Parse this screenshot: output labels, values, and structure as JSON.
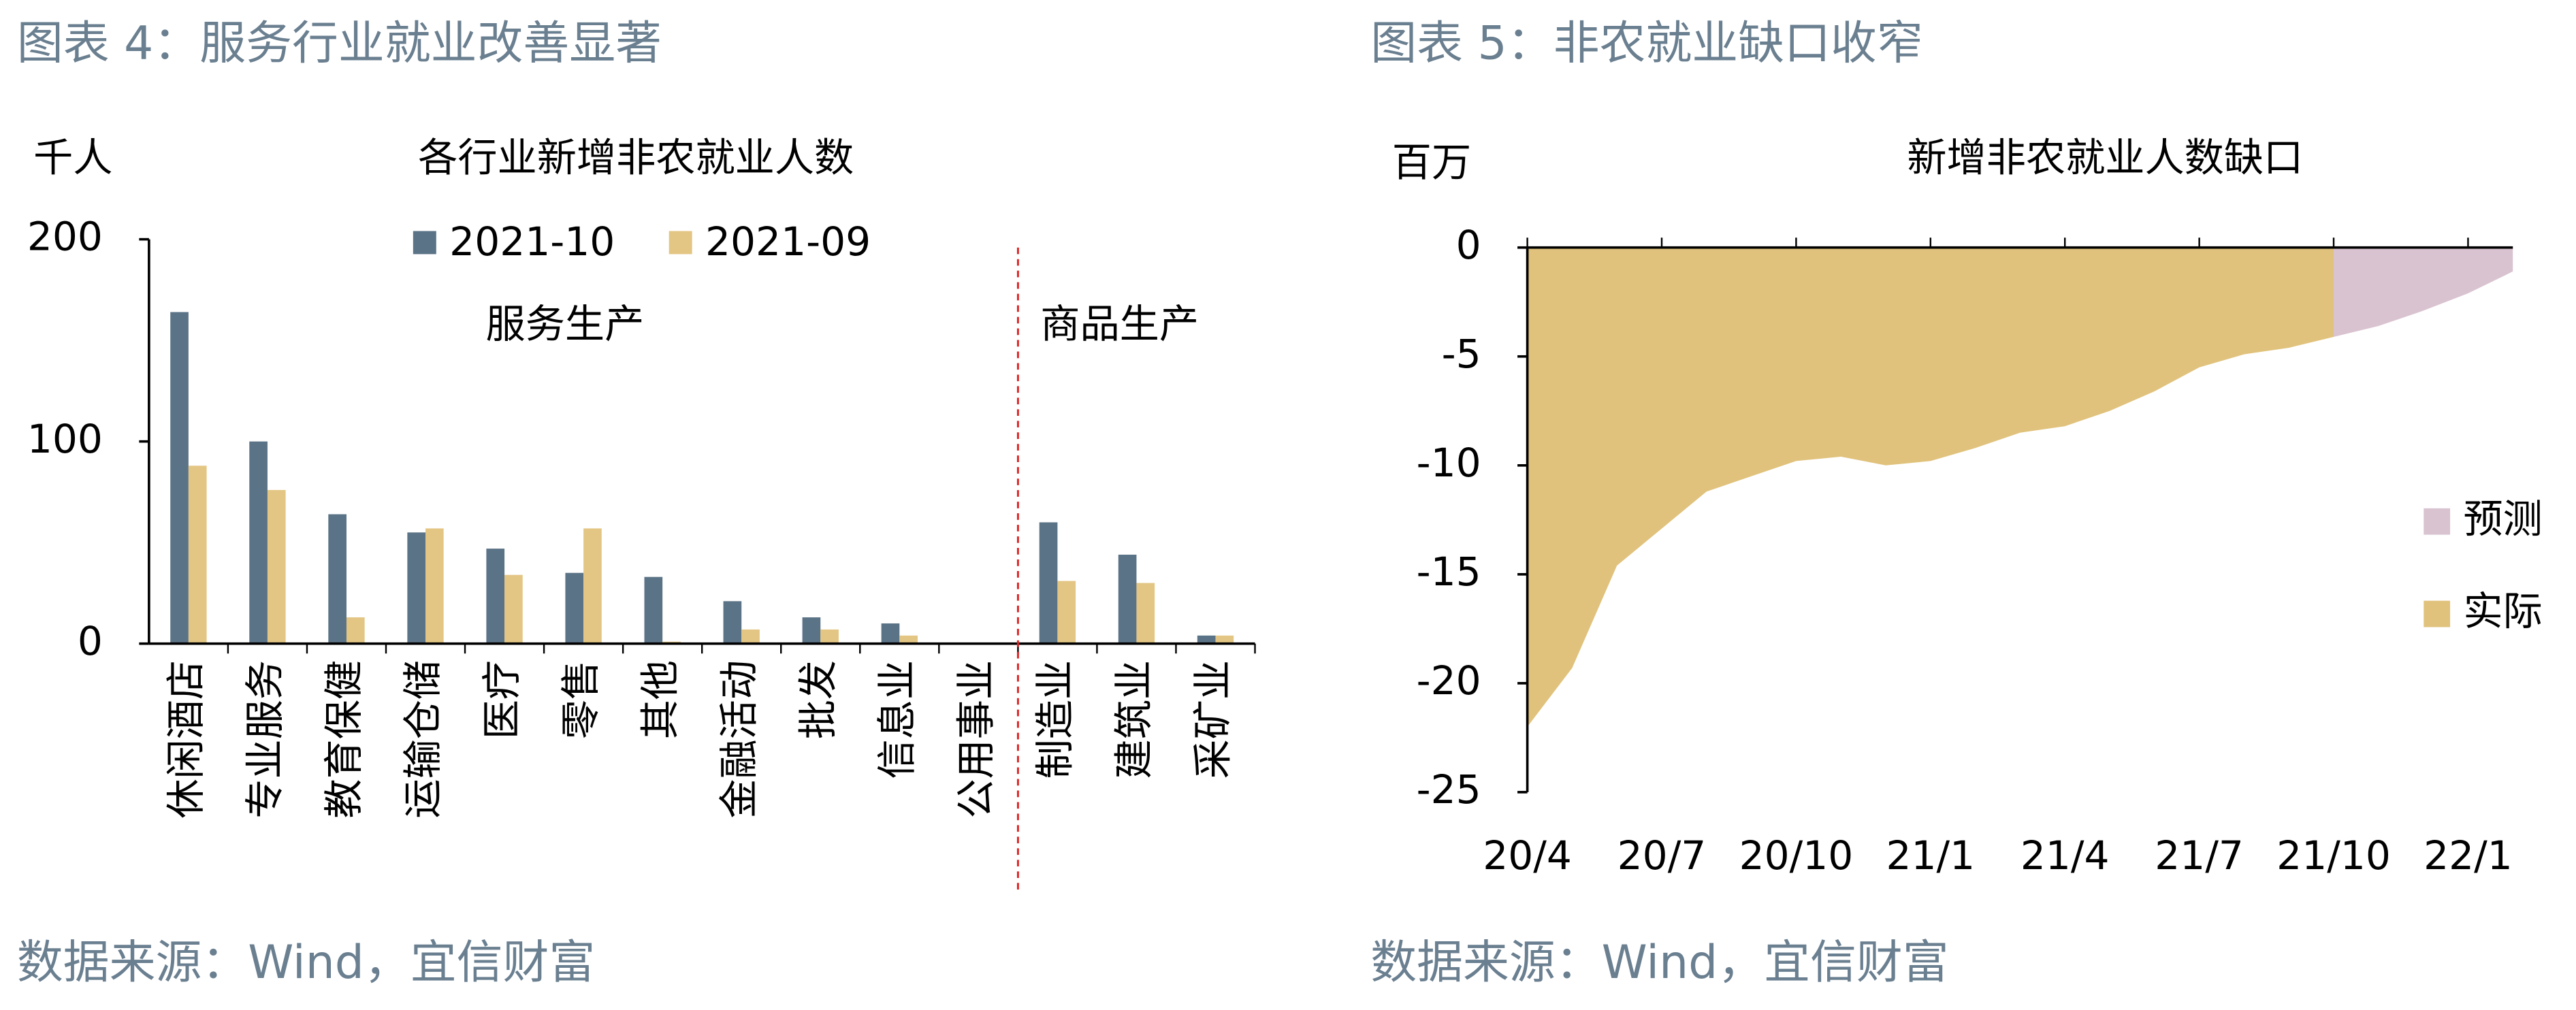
{
  "chart_data": [
    {
      "type": "bar",
      "title": "图表 4：服务行业就业改善显著",
      "subtitle": "各行业新增非农就业人数",
      "y_unit": "千人",
      "source": "数据来源：Wind，宜信财富",
      "categories": [
        "休闲酒店",
        "专业服务",
        "教育保健",
        "运输仓储",
        "医疗",
        "零售",
        "其他",
        "金融活动",
        "批发",
        "信息业",
        "公用事业",
        "制造业",
        "建筑业",
        "采矿业"
      ],
      "series": [
        {
          "name": "2021-10",
          "color": "#5b7386",
          "values": [
            164,
            100,
            64,
            55,
            47,
            35,
            33,
            21,
            13,
            10,
            0,
            60,
            44,
            4
          ]
        },
        {
          "name": "2021-09",
          "color": "#e3c684",
          "values": [
            88,
            76,
            13,
            57,
            34,
            57,
            1,
            7,
            7,
            4,
            0,
            31,
            30,
            4
          ]
        }
      ],
      "annotations": [
        "服务生产",
        "商品生产"
      ],
      "ylim": [
        0,
        200
      ],
      "yticks": [
        0,
        100,
        200
      ]
    },
    {
      "type": "area",
      "title": "图表 5：非农就业缺口收窄",
      "subtitle": "新增非农就业人数缺口",
      "y_unit": "百万",
      "source": "数据来源：Wind，宜信财富",
      "categories": [
        "20/4",
        null,
        null,
        "20/7",
        null,
        null,
        "20/10",
        null,
        null,
        "21/1",
        null,
        null,
        "21/4",
        null,
        null,
        "21/7",
        null,
        null,
        "21/10",
        null,
        null,
        "22/1",
        null
      ],
      "series": [
        {
          "name": "预测",
          "color": "#d9c3d0",
          "values": [
            null,
            null,
            null,
            null,
            null,
            null,
            null,
            null,
            null,
            null,
            null,
            null,
            null,
            null,
            null,
            null,
            null,
            null,
            -4.1,
            -3.6,
            -2.9,
            -2.1,
            -1.1
          ]
        },
        {
          "name": "实际",
          "color": "#e0c27c",
          "values": [
            -22.0,
            -19.3,
            -14.6,
            -12.9,
            -11.2,
            -10.5,
            -9.8,
            -9.6,
            -10.0,
            -9.8,
            -9.2,
            -8.5,
            -8.2,
            -7.5,
            -6.6,
            -5.5,
            -4.9,
            -4.6,
            -4.1,
            null,
            null,
            null,
            null
          ]
        }
      ],
      "ylim": [
        -25,
        0
      ],
      "yticks": [
        0,
        -5,
        -10,
        -15,
        -20,
        -25
      ]
    }
  ]
}
